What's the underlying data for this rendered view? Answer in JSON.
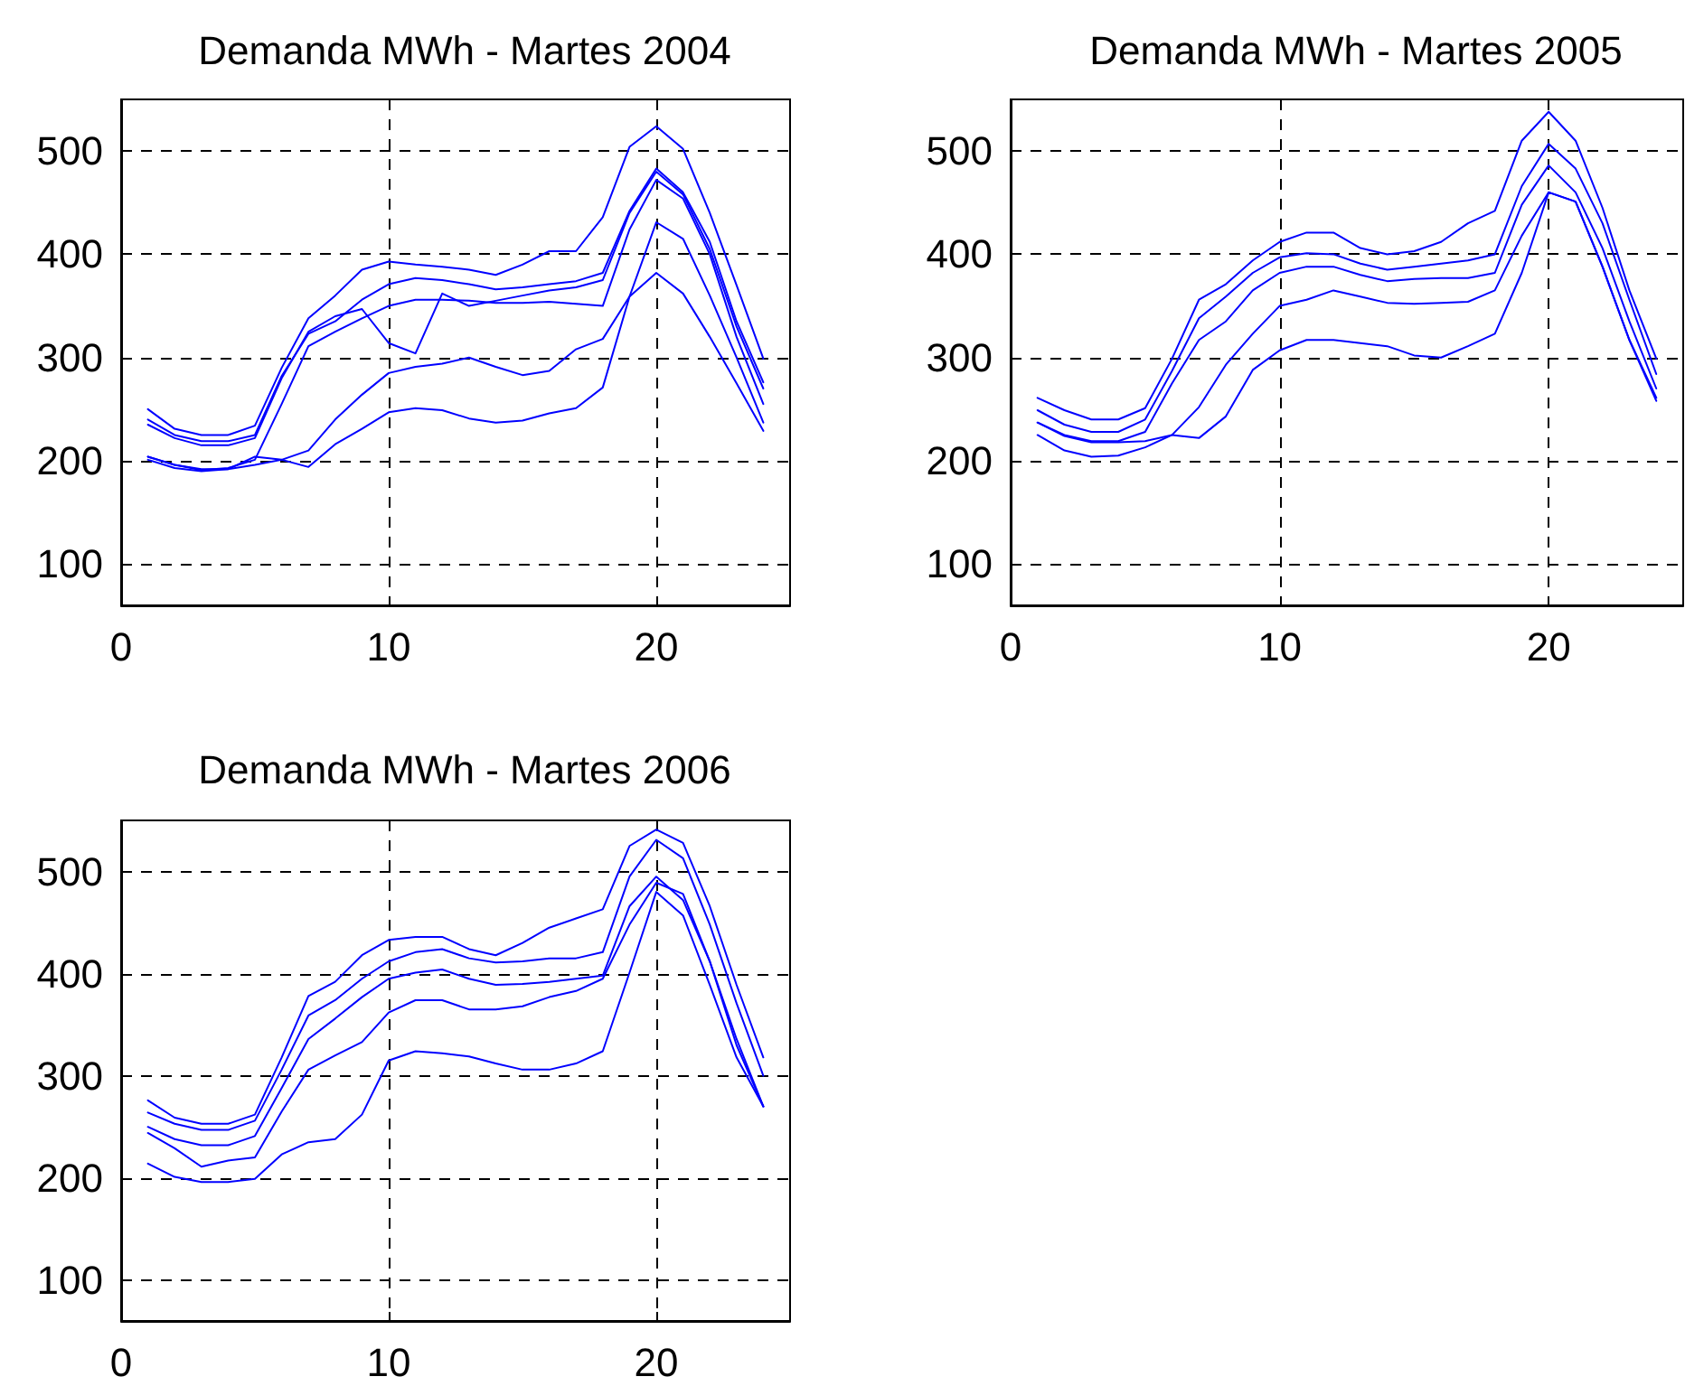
{
  "chart_data": [
    {
      "type": "line",
      "title": "Demanda MWh - Martes 2004",
      "x": [
        1,
        2,
        3,
        4,
        5,
        6,
        7,
        8,
        9,
        10,
        11,
        12,
        13,
        14,
        15,
        16,
        17,
        18,
        19,
        20,
        21,
        22,
        23,
        24
      ],
      "series": [
        {
          "color": "#0000ff",
          "values": [
            250,
            231,
            225,
            225,
            234,
            290,
            338,
            360,
            385,
            393,
            390,
            388,
            385,
            380,
            390,
            403,
            403,
            436,
            504,
            524,
            502,
            440,
            370,
            299
          ]
        },
        {
          "color": "#0000ff",
          "values": [
            240,
            225,
            219,
            219,
            225,
            282,
            323,
            335,
            356,
            371,
            377,
            375,
            371,
            366,
            368,
            371,
            374,
            382,
            442,
            483,
            460,
            412,
            335,
            276
          ]
        },
        {
          "color": "#0000ff",
          "values": [
            204,
            196,
            191,
            193,
            201,
            255,
            311,
            325,
            338,
            350,
            356,
            356,
            355,
            353,
            353,
            354,
            352,
            350,
            424,
            472,
            454,
            400,
            320,
            255
          ]
        },
        {
          "color": "#0000ff",
          "values": [
            235,
            222,
            215,
            215,
            222,
            280,
            325,
            340,
            347,
            314,
            304,
            362,
            350,
            355,
            360,
            365,
            368,
            375,
            440,
            480,
            458,
            405,
            330,
            270
          ]
        },
        {
          "color": "#0000ff",
          "values": [
            204,
            196,
            192,
            192,
            204,
            201,
            210,
            240,
            264,
            285,
            291,
            294,
            300,
            291,
            283,
            287,
            308,
            318,
            359,
            431,
            415,
            360,
            300,
            237
          ]
        },
        {
          "color": "#0000ff",
          "values": [
            201,
            193,
            190,
            192,
            196,
            201,
            194,
            216,
            231,
            247,
            251,
            249,
            241,
            237,
            239,
            246,
            251,
            271,
            359,
            382,
            362,
            320,
            275,
            229
          ]
        }
      ],
      "xlim": [
        0,
        25
      ],
      "ylim": [
        60,
        550
      ],
      "xticks": [
        0,
        10,
        20
      ],
      "yticks": [
        100,
        200,
        300,
        400,
        500
      ],
      "grid": true,
      "line_style": "solid"
    },
    {
      "type": "line",
      "title": "Demanda MWh - Martes 2005",
      "x": [
        1,
        2,
        3,
        4,
        5,
        6,
        7,
        8,
        9,
        10,
        11,
        12,
        13,
        14,
        15,
        16,
        17,
        18,
        19,
        20,
        21,
        22,
        23,
        24
      ],
      "series": [
        {
          "color": "#0000ff",
          "values": [
            261,
            249,
            240,
            240,
            251,
            299,
            356,
            371,
            394,
            412,
            421,
            421,
            406,
            400,
            403,
            412,
            430,
            442,
            510,
            538,
            510,
            445,
            365,
            299
          ]
        },
        {
          "color": "#0000ff",
          "values": [
            249,
            235,
            228,
            228,
            240,
            287,
            338,
            359,
            382,
            397,
            401,
            400,
            391,
            385,
            388,
            391,
            394,
            400,
            466,
            507,
            483,
            430,
            356,
            284
          ]
        },
        {
          "color": "#0000ff",
          "values": [
            237,
            225,
            219,
            219,
            228,
            275,
            317,
            335,
            365,
            382,
            388,
            388,
            380,
            374,
            376,
            377,
            377,
            382,
            448,
            486,
            460,
            406,
            335,
            270
          ]
        },
        {
          "color": "#0000ff",
          "values": [
            237,
            224,
            218,
            218,
            219,
            225,
            252,
            293,
            323,
            350,
            356,
            365,
            359,
            353,
            352,
            353,
            354,
            365,
            418,
            460,
            451,
            388,
            317,
            261
          ]
        },
        {
          "color": "#0000ff",
          "values": [
            225,
            210,
            204,
            205,
            213,
            225,
            222,
            243,
            288,
            307,
            317,
            317,
            314,
            311,
            302,
            300,
            311,
            323,
            382,
            460,
            451,
            388,
            317,
            258
          ]
        }
      ],
      "xlim": [
        0,
        25
      ],
      "ylim": [
        60,
        550
      ],
      "xticks": [
        0,
        10,
        20
      ],
      "yticks": [
        100,
        200,
        300,
        400,
        500
      ],
      "grid": true,
      "line_style": "solid"
    },
    {
      "type": "line",
      "title": "Demanda MWh - Martes 2006",
      "x": [
        1,
        2,
        3,
        4,
        5,
        6,
        7,
        8,
        9,
        10,
        11,
        12,
        13,
        14,
        15,
        16,
        17,
        18,
        19,
        20,
        21,
        22,
        23,
        24
      ],
      "series": [
        {
          "color": "#0000ff",
          "values": [
            276,
            259,
            253,
            253,
            262,
            318,
            378,
            392,
            418,
            433,
            436,
            436,
            424,
            418,
            430,
            445,
            454,
            463,
            525,
            541,
            528,
            466,
            389,
            318
          ]
        },
        {
          "color": "#0000ff",
          "values": [
            264,
            253,
            247,
            247,
            256,
            306,
            359,
            374,
            395,
            412,
            421,
            424,
            415,
            411,
            412,
            415,
            415,
            421,
            495,
            531,
            513,
            448,
            371,
            300
          ]
        },
        {
          "color": "#0000ff",
          "values": [
            250,
            238,
            232,
            232,
            241,
            288,
            336,
            356,
            377,
            395,
            401,
            404,
            395,
            389,
            390,
            392,
            395,
            398,
            466,
            495,
            472,
            412,
            336,
            270
          ]
        },
        {
          "color": "#0000ff",
          "values": [
            244,
            229,
            211,
            217,
            220,
            265,
            306,
            320,
            333,
            362,
            374,
            374,
            365,
            365,
            368,
            377,
            383,
            395,
            448,
            489,
            478,
            412,
            330,
            270
          ]
        },
        {
          "color": "#0000ff",
          "values": [
            214,
            201,
            196,
            196,
            199,
            223,
            235,
            238,
            262,
            315,
            324,
            322,
            319,
            312,
            306,
            306,
            312,
            324,
            401,
            480,
            457,
            389,
            318,
            270
          ]
        }
      ],
      "xlim": [
        0,
        25
      ],
      "ylim": [
        60,
        550
      ],
      "xticks": [
        0,
        10,
        20
      ],
      "yticks": [
        100,
        200,
        300,
        400,
        500
      ],
      "grid": true,
      "line_style": "solid"
    }
  ]
}
